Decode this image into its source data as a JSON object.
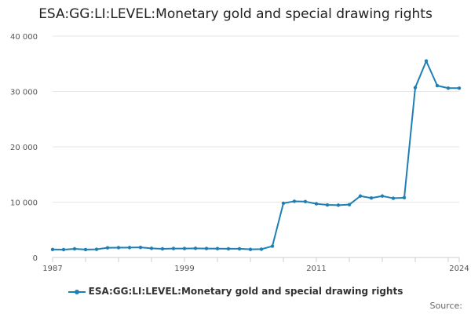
{
  "chart_data": {
    "type": "line",
    "title": "ESA:GG:LI:LEVEL:Monetary gold and special drawing rights",
    "xlabel": "",
    "ylabel": "",
    "x": [
      1987,
      1988,
      1989,
      1990,
      1991,
      1992,
      1993,
      1994,
      1995,
      1996,
      1997,
      1998,
      1999,
      2000,
      2001,
      2002,
      2003,
      2004,
      2005,
      2006,
      2007,
      2008,
      2009,
      2010,
      2011,
      2012,
      2013,
      2014,
      2015,
      2016,
      2017,
      2018,
      2019,
      2020,
      2021,
      2022,
      2023,
      2024
    ],
    "series": [
      {
        "name": "ESA:GG:LI:LEVEL:Monetary gold and special drawing rights",
        "color": "#1f7fb4",
        "values": [
          1450,
          1420,
          1560,
          1430,
          1480,
          1750,
          1780,
          1790,
          1820,
          1650,
          1560,
          1620,
          1620,
          1650,
          1620,
          1600,
          1570,
          1570,
          1470,
          1500,
          2050,
          9800,
          10150,
          10100,
          9700,
          9500,
          9450,
          9550,
          11100,
          10750,
          11100,
          10700,
          10800,
          30700,
          35500,
          31050,
          30600,
          30600
        ]
      }
    ],
    "x_ticks": [
      "1987",
      "1999",
      "2011",
      "2024"
    ],
    "y_ticks": [
      "0",
      "10 000",
      "20 000",
      "30 000",
      "40 000"
    ],
    "xlim": [
      1987,
      2024
    ],
    "ylim": [
      0,
      40000
    ],
    "grid": true,
    "legend": "bottom-center",
    "legend_label": "ESA:GG:LI:LEVEL:Monetary gold and special drawing rights",
    "credit": "Source:"
  }
}
